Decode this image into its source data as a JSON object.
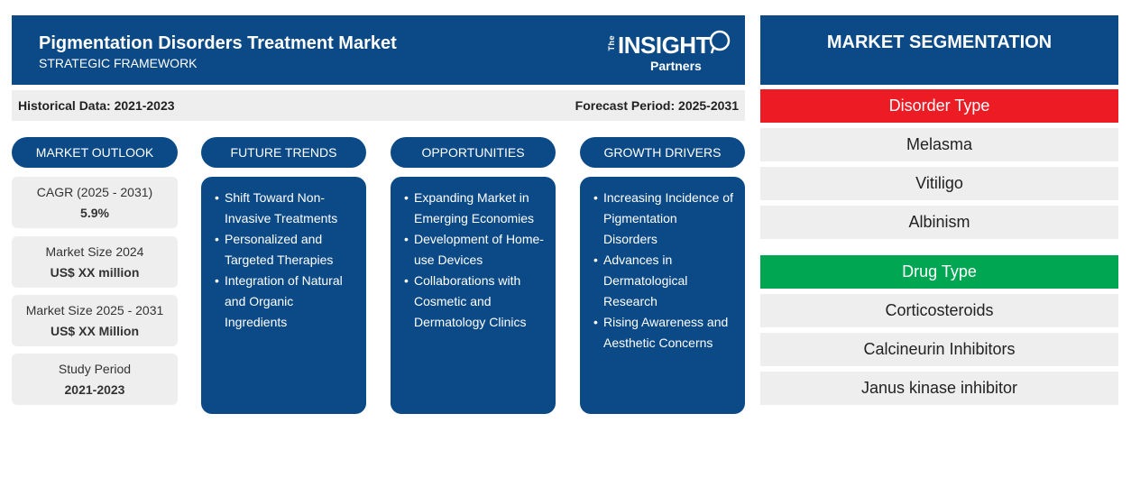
{
  "header": {
    "title": "Pigmentation Disorders Treatment Market",
    "subtitle": "STRATEGIC FRAMEWORK",
    "logo": {
      "the": "The",
      "insight": "INSIGHT",
      "partners": "Partners"
    }
  },
  "period": {
    "historical": "Historical Data: 2021-2023",
    "forecast": "Forecast Period: 2025-2031"
  },
  "columns": {
    "outlook": "MARKET OUTLOOK",
    "trends": "FUTURE TRENDS",
    "opportunities": "OPPORTUNITIES",
    "drivers": "GROWTH DRIVERS"
  },
  "outlook": [
    {
      "label": "CAGR (2025 - 2031)",
      "value": "5.9%"
    },
    {
      "label": "Market Size 2024",
      "value": "US$ XX million"
    },
    {
      "label": "Market Size 2025 - 2031",
      "value": "US$ XX Million"
    },
    {
      "label": "Study Period",
      "value": "2021-2023"
    }
  ],
  "trends": [
    "Shift Toward Non-Invasive Treatments",
    "Personalized and Targeted Therapies",
    "Integration of Natural and Organic Ingredients"
  ],
  "opportunities": [
    "Expanding Market in Emerging Economies",
    "Development of Home-use Devices",
    "Collaborations with Cosmetic and Dermatology Clinics"
  ],
  "drivers": [
    "Increasing Incidence of Pigmentation Disorders",
    "Advances in Dermatological Research",
    "Rising Awareness and Aesthetic Concerns"
  ],
  "segmentation": {
    "title": "MARKET SEGMENTATION",
    "categories": [
      {
        "name": "Disorder Type",
        "color": "#ed1c24",
        "items": [
          "Melasma",
          "Vitiligo",
          "Albinism"
        ]
      },
      {
        "name": "Drug Type",
        "color": "#00a651",
        "items": [
          "Corticosteroids",
          "Calcineurin Inhibitors",
          "Janus kinase inhibitor"
        ]
      }
    ]
  },
  "colors": {
    "primary": "#0b4a86",
    "panel": "#eeeeee"
  }
}
